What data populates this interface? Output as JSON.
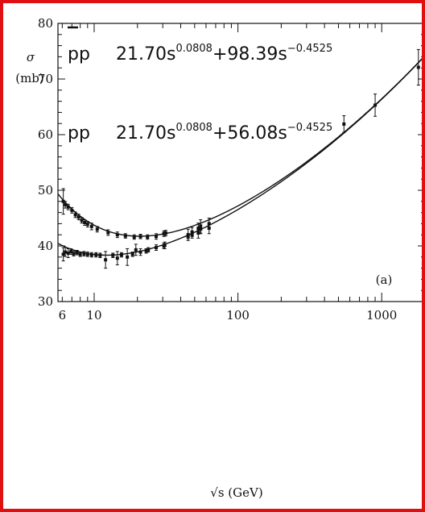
{
  "chart_data": {
    "type": "scatter",
    "title": "",
    "xlabel": "√s  (GeV)",
    "ylabel": "σ\n(mb)",
    "x_scale": "log",
    "xlim": [
      5.6,
      2000
    ],
    "ylim": [
      30,
      80
    ],
    "x_ticks": [
      6,
      10,
      100,
      1000
    ],
    "x_tick_labels": [
      "6",
      "10",
      "100",
      "1000"
    ],
    "y_ticks": [
      30,
      40,
      50,
      60,
      70,
      80
    ],
    "y_tick_labels": [
      "30",
      "40",
      "50",
      "60",
      "70",
      "80"
    ],
    "grid": false,
    "panel_label": "(a)",
    "legend": [
      {
        "label": "p̄p",
        "parts": [
          "21.70s",
          "0.0808",
          "+98.39s",
          "−0.4525"
        ]
      },
      {
        "label": "pp",
        "parts": [
          "21.70s",
          "0.0808",
          "+56.08s",
          "−0.4525"
        ]
      }
    ],
    "series": [
      {
        "name": "p̄p",
        "fit": {
          "A": 21.7,
          "eps": 0.0808,
          "B": 98.39,
          "eta": 0.4525
        },
        "points": [
          {
            "x": 6.1,
            "y": 48.0,
            "err": 2.3
          },
          {
            "x": 6.3,
            "y": 47.4,
            "err": 0.6
          },
          {
            "x": 6.6,
            "y": 47.0,
            "err": 0.5
          },
          {
            "x": 7.0,
            "y": 46.4,
            "err": 0.5
          },
          {
            "x": 7.4,
            "y": 45.6,
            "err": 0.5
          },
          {
            "x": 7.8,
            "y": 45.2,
            "err": 0.5
          },
          {
            "x": 8.2,
            "y": 44.6,
            "err": 0.5
          },
          {
            "x": 8.6,
            "y": 44.2,
            "err": 0.5
          },
          {
            "x": 9.0,
            "y": 43.9,
            "err": 0.5
          },
          {
            "x": 9.6,
            "y": 43.5,
            "err": 0.6
          },
          {
            "x": 10.5,
            "y": 43.0,
            "err": 0.5
          },
          {
            "x": 12.5,
            "y": 42.4,
            "err": 0.5
          },
          {
            "x": 14.5,
            "y": 42.0,
            "err": 0.5
          },
          {
            "x": 16.5,
            "y": 41.8,
            "err": 0.4
          },
          {
            "x": 19.0,
            "y": 41.6,
            "err": 0.4
          },
          {
            "x": 21.0,
            "y": 41.7,
            "err": 0.4
          },
          {
            "x": 23.5,
            "y": 41.6,
            "err": 0.4
          },
          {
            "x": 27.0,
            "y": 41.7,
            "err": 0.5
          },
          {
            "x": 30.5,
            "y": 42.2,
            "err": 0.5
          },
          {
            "x": 31.5,
            "y": 42.3,
            "err": 0.5
          },
          {
            "x": 45.0,
            "y": 42.0,
            "err": 1.0
          },
          {
            "x": 48.0,
            "y": 42.5,
            "err": 0.8
          },
          {
            "x": 53.0,
            "y": 43.1,
            "err": 1.0
          },
          {
            "x": 55.0,
            "y": 43.5,
            "err": 1.2
          },
          {
            "x": 63.0,
            "y": 44.0,
            "err": 1.0
          },
          {
            "x": 546.0,
            "y": 61.9,
            "err": 1.5
          },
          {
            "x": 900.0,
            "y": 65.3,
            "err": 2.0
          },
          {
            "x": 1800.0,
            "y": 72.1,
            "err": 3.2
          }
        ]
      },
      {
        "name": "pp",
        "fit": {
          "A": 21.7,
          "eps": 0.0808,
          "B": 56.08,
          "eta": 0.4525
        },
        "points": [
          {
            "x": 6.1,
            "y": 38.5,
            "err": 1.2
          },
          {
            "x": 6.3,
            "y": 38.9,
            "err": 0.8
          },
          {
            "x": 6.6,
            "y": 38.7,
            "err": 0.8
          },
          {
            "x": 6.9,
            "y": 39.0,
            "err": 0.5
          },
          {
            "x": 7.2,
            "y": 38.6,
            "err": 0.4
          },
          {
            "x": 7.6,
            "y": 38.8,
            "err": 0.4
          },
          {
            "x": 8.0,
            "y": 38.5,
            "err": 0.4
          },
          {
            "x": 8.5,
            "y": 38.6,
            "err": 0.4
          },
          {
            "x": 9.0,
            "y": 38.5,
            "err": 0.4
          },
          {
            "x": 9.6,
            "y": 38.4,
            "err": 0.4
          },
          {
            "x": 10.3,
            "y": 38.4,
            "err": 0.4
          },
          {
            "x": 11.0,
            "y": 38.3,
            "err": 0.4
          },
          {
            "x": 12.0,
            "y": 37.5,
            "err": 1.5
          },
          {
            "x": 13.5,
            "y": 38.3,
            "err": 0.4
          },
          {
            "x": 14.5,
            "y": 37.8,
            "err": 1.2
          },
          {
            "x": 15.5,
            "y": 38.4,
            "err": 0.4
          },
          {
            "x": 17.0,
            "y": 38.0,
            "err": 1.5
          },
          {
            "x": 18.5,
            "y": 38.5,
            "err": 0.4
          },
          {
            "x": 19.5,
            "y": 39.3,
            "err": 1.0
          },
          {
            "x": 21.0,
            "y": 38.9,
            "err": 0.6
          },
          {
            "x": 23.0,
            "y": 39.1,
            "err": 0.4
          },
          {
            "x": 23.8,
            "y": 39.3,
            "err": 0.4
          },
          {
            "x": 27.0,
            "y": 39.7,
            "err": 0.5
          },
          {
            "x": 30.5,
            "y": 40.0,
            "err": 0.5
          },
          {
            "x": 31.0,
            "y": 40.1,
            "err": 0.6
          },
          {
            "x": 45.0,
            "y": 41.6,
            "err": 0.6
          },
          {
            "x": 48.0,
            "y": 42.0,
            "err": 0.6
          },
          {
            "x": 53.0,
            "y": 42.4,
            "err": 1.0
          },
          {
            "x": 55.0,
            "y": 43.0,
            "err": 0.8
          },
          {
            "x": 63.0,
            "y": 43.2,
            "err": 1.0
          }
        ]
      }
    ]
  }
}
